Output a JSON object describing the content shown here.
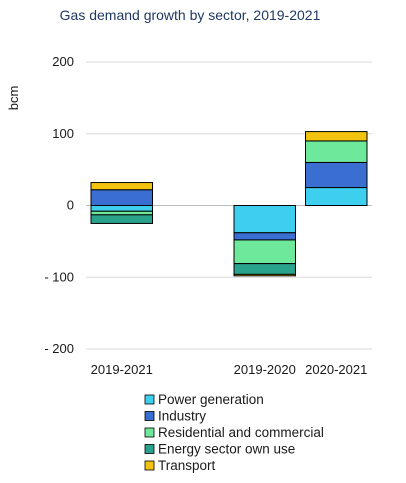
{
  "chart_data": {
    "type": "bar",
    "stacked": true,
    "title": "Gas demand growth by sector, 2019-2021",
    "ylabel": "bcm",
    "xlabel": "",
    "ylim": [
      -200,
      200
    ],
    "yticks": [
      200,
      100,
      0,
      -100,
      -200
    ],
    "ytick_labels": [
      "200",
      "100",
      "0",
      "- 100",
      "- 200"
    ],
    "categories": [
      "2019-2021",
      "",
      "2019-2020",
      "2020-2021"
    ],
    "grid": true,
    "legend_position": "bottom",
    "series": [
      {
        "name": "Power generation",
        "color": "#3fcfee",
        "values": [
          -8,
          null,
          -38,
          25
        ]
      },
      {
        "name": "Industry",
        "color": "#3a6fd1",
        "values": [
          22,
          null,
          -10,
          35
        ]
      },
      {
        "name": "Residential and commercial",
        "color": "#6ee89a",
        "values": [
          -5,
          null,
          -33,
          30
        ]
      },
      {
        "name": "Energy sector own use",
        "color": "#2aa38c",
        "values": [
          -12,
          null,
          -15,
          0
        ]
      },
      {
        "name": "Transport",
        "color": "#f2c40f",
        "values": [
          10,
          null,
          -2,
          13
        ]
      }
    ]
  }
}
